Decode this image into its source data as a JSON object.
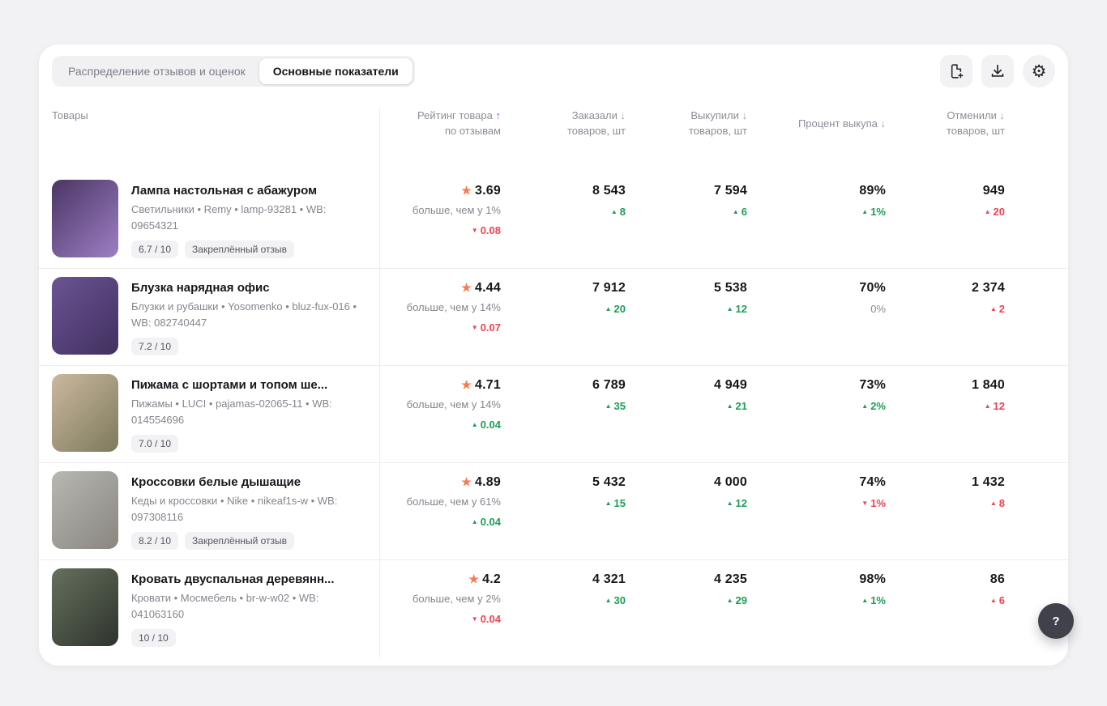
{
  "colors": {
    "accent_purple": "#a04cf0",
    "positive": "#1f9d57",
    "negative": "#f04452",
    "star": "#fa7a50"
  },
  "tabs": [
    {
      "label": "Распределение отзывов и оценок",
      "active": false
    },
    {
      "label": "Основные показатели",
      "active": true
    }
  ],
  "toolbar": {
    "icons": [
      "file-export-icon",
      "download-icon",
      "settings-icon"
    ]
  },
  "help_button": {
    "label": "?"
  },
  "table": {
    "columns": [
      {
        "label": "Товары",
        "sort": "",
        "sublabel": ""
      },
      {
        "label": "Рейтинг товара",
        "sort": "↑",
        "sublabel": "по отзывам"
      },
      {
        "label": "Заказали",
        "sort": "↓",
        "sublabel": "товаров, шт"
      },
      {
        "label": "Выкупили",
        "sort": "↓",
        "sublabel": "товаров, шт"
      },
      {
        "label": "Процент выкупа",
        "sort": "↓",
        "sublabel": ""
      },
      {
        "label": "Отменили",
        "sort": "↓",
        "sublabel": "товаров, шт"
      }
    ],
    "rows": [
      {
        "title": "Лампа настольная с абажуром",
        "subtitle": "Светильники • Remy • lamp-93281 • WB: 09654321",
        "badges": [
          "6.7 / 10",
          "Закреплённый отзыв"
        ],
        "image": {
          "name": "lamp",
          "colors": [
            "#4a3563",
            "#9d7fc4"
          ]
        },
        "rating": {
          "value": "3.69",
          "compare": "больше, чем у 1%",
          "delta": {
            "dir": "down",
            "text": "0.08",
            "color": "red"
          }
        },
        "ordered": {
          "value": "8 543",
          "delta": {
            "dir": "up",
            "text": "8",
            "color": "green"
          }
        },
        "bought": {
          "value": "7 594",
          "delta": {
            "dir": "up",
            "text": "6",
            "color": "green"
          }
        },
        "buyout": {
          "value": "89%",
          "delta": {
            "dir": "up",
            "text": "1%",
            "color": "green"
          }
        },
        "cancelled": {
          "value": "949",
          "delta": {
            "dir": "up",
            "text": "20",
            "color": "red"
          }
        }
      },
      {
        "title": "Блузка нарядная офис",
        "subtitle": "Блузки и рубашки • Yosomenko • bluz-fux-016 • WB: 082740447",
        "badges": [
          "7.2 / 10"
        ],
        "image": {
          "name": "blouse",
          "colors": [
            "#6b5494",
            "#41305f"
          ]
        },
        "rating": {
          "value": "4.44",
          "compare": "больше, чем у 14%",
          "delta": {
            "dir": "down",
            "text": "0.07",
            "color": "red"
          }
        },
        "ordered": {
          "value": "7 912",
          "delta": {
            "dir": "up",
            "text": "20",
            "color": "green"
          }
        },
        "bought": {
          "value": "5 538",
          "delta": {
            "dir": "up",
            "text": "12",
            "color": "green"
          }
        },
        "buyout": {
          "value": "70%",
          "delta": {
            "dir": "none",
            "text": "0%",
            "color": "gray"
          }
        },
        "cancelled": {
          "value": "2 374",
          "delta": {
            "dir": "up",
            "text": "2",
            "color": "red"
          }
        }
      },
      {
        "title": "Пижама с шортами и топом ше...",
        "subtitle": "Пижамы • LUCI • pajamas-02065-11 • WB: 014554696",
        "badges": [
          "7.0 / 10"
        ],
        "image": {
          "name": "pajamas",
          "colors": [
            "#cbb89f",
            "#7d7a5c"
          ]
        },
        "rating": {
          "value": "4.71",
          "compare": "больше, чем у 14%",
          "delta": {
            "dir": "up",
            "text": "0.04",
            "color": "green"
          }
        },
        "ordered": {
          "value": "6 789",
          "delta": {
            "dir": "up",
            "text": "35",
            "color": "green"
          }
        },
        "bought": {
          "value": "4 949",
          "delta": {
            "dir": "up",
            "text": "21",
            "color": "green"
          }
        },
        "buyout": {
          "value": "73%",
          "delta": {
            "dir": "up",
            "text": "2%",
            "color": "green"
          }
        },
        "cancelled": {
          "value": "1 840",
          "delta": {
            "dir": "up",
            "text": "12",
            "color": "red"
          }
        }
      },
      {
        "title": "Кроссовки белые дышащие",
        "subtitle": "Кеды и кроссовки • Nike • nikeaf1s-w • WB: 097308116",
        "badges": [
          "8.2 / 10",
          "Закреплённый отзыв"
        ],
        "image": {
          "name": "sneakers",
          "colors": [
            "#b9b7b2",
            "#88867f"
          ]
        },
        "rating": {
          "value": "4.89",
          "compare": "больше, чем у 61%",
          "delta": {
            "dir": "up",
            "text": "0.04",
            "color": "green"
          }
        },
        "ordered": {
          "value": "5 432",
          "delta": {
            "dir": "up",
            "text": "15",
            "color": "green"
          }
        },
        "bought": {
          "value": "4 000",
          "delta": {
            "dir": "up",
            "text": "12",
            "color": "green"
          }
        },
        "buyout": {
          "value": "74%",
          "delta": {
            "dir": "down",
            "text": "1%",
            "color": "red"
          }
        },
        "cancelled": {
          "value": "1 432",
          "delta": {
            "dir": "up",
            "text": "8",
            "color": "red"
          }
        }
      },
      {
        "title": "Кровать двуспальная деревянн...",
        "subtitle": "Кровати • Мосмебель • br-w-w02 • WB: 041063160",
        "badges": [
          "10 / 10"
        ],
        "image": {
          "name": "bed",
          "colors": [
            "#66705e",
            "#2e332c"
          ]
        },
        "rating": {
          "value": "4.2",
          "compare": "больше, чем у 2%",
          "delta": {
            "dir": "down",
            "text": "0.04",
            "color": "red"
          }
        },
        "ordered": {
          "value": "4 321",
          "delta": {
            "dir": "up",
            "text": "30",
            "color": "green"
          }
        },
        "bought": {
          "value": "4 235",
          "delta": {
            "dir": "up",
            "text": "29",
            "color": "green"
          }
        },
        "buyout": {
          "value": "98%",
          "delta": {
            "dir": "up",
            "text": "1%",
            "color": "green"
          }
        },
        "cancelled": {
          "value": "86",
          "delta": {
            "dir": "up",
            "text": "6",
            "color": "red"
          }
        }
      }
    ]
  }
}
